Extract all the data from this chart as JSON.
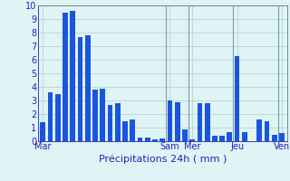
{
  "title": "",
  "xlabel": "Précipitations 24h ( mm )",
  "background_color": "#dff4f4",
  "bar_color": "#1a55e0",
  "ylim": [
    0,
    10
  ],
  "yticks": [
    0,
    1,
    2,
    3,
    4,
    5,
    6,
    7,
    8,
    9,
    10
  ],
  "values": [
    1.4,
    3.6,
    3.5,
    9.5,
    9.6,
    7.7,
    7.8,
    3.8,
    3.9,
    2.7,
    2.8,
    1.5,
    1.6,
    0.3,
    0.3,
    0.15,
    0.2,
    3.0,
    2.9,
    0.9,
    0.15,
    2.8,
    2.8,
    0.4,
    0.4,
    0.7,
    6.3,
    0.7,
    0.0,
    1.6,
    1.5,
    0.5,
    0.6
  ],
  "day_labels": [
    "Mar",
    "Sam",
    "Mer",
    "Jeu",
    "Ven"
  ],
  "day_positions": [
    0,
    17,
    20,
    26,
    32
  ],
  "vline_positions": [
    16.5,
    19.5,
    25.5,
    31.5
  ],
  "grid_color": "#b8d4d4",
  "tick_color": "#2222bb",
  "xlabel_color": "#2222bb",
  "xlabel_fontsize": 8,
  "tick_fontsize": 7,
  "bar_width": 0.7
}
